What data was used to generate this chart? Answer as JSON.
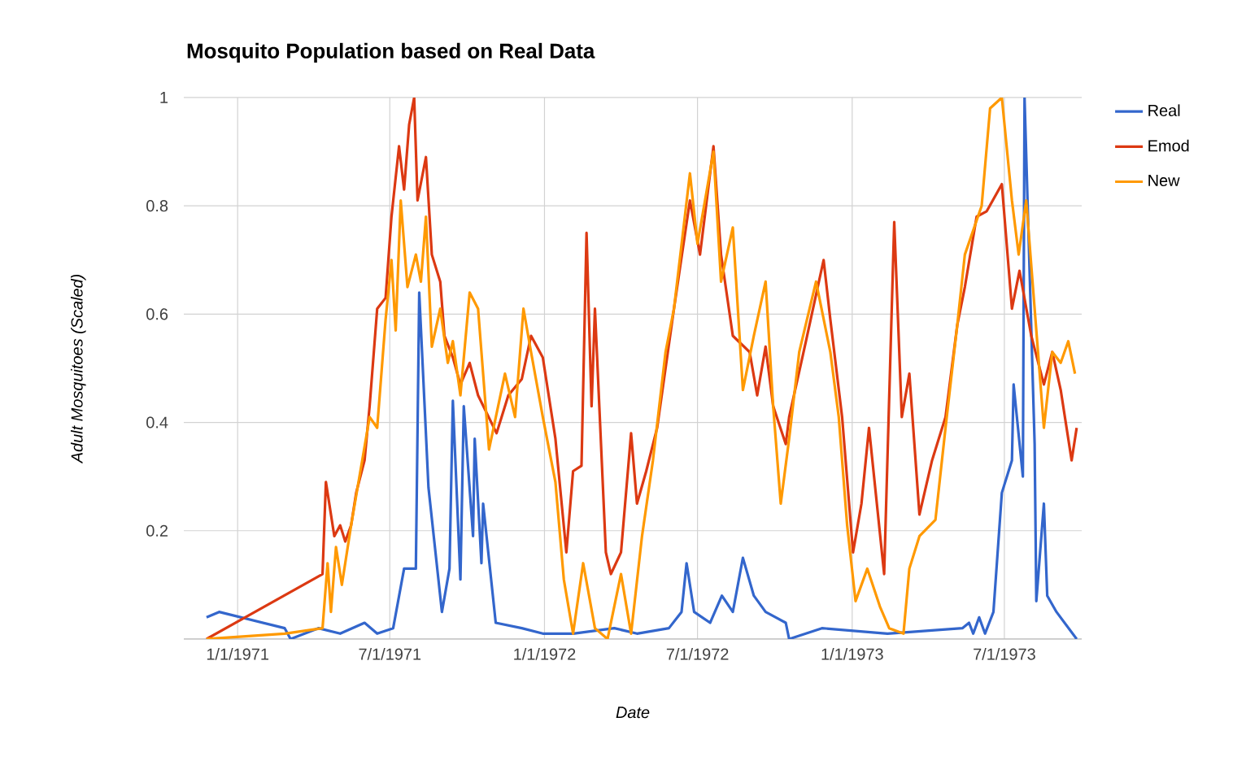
{
  "chart_data": {
    "type": "line",
    "title": "Mosquito Population based on Real Data",
    "xlabel": "Date",
    "ylabel": "Adult Mosquitoes (Scaled)",
    "xlim": [
      "1970-10-29",
      "1973-10-01"
    ],
    "ylim": [
      0,
      1
    ],
    "xticks": [
      {
        "value": "1971-01-01",
        "label": "1/1/1971"
      },
      {
        "value": "1971-07-01",
        "label": "7/1/1971"
      },
      {
        "value": "1972-01-01",
        "label": "1/1/1972"
      },
      {
        "value": "1972-07-01",
        "label": "7/1/1972"
      },
      {
        "value": "1973-01-01",
        "label": "1/1/1973"
      },
      {
        "value": "1973-07-01",
        "label": "7/1/1973"
      }
    ],
    "yticks": [
      {
        "value": 0,
        "label": null
      },
      0.2,
      0.4,
      0.6,
      0.8,
      1
    ],
    "grid": true,
    "legend": "right",
    "series": [
      {
        "name": "Real",
        "color": "#3366cc",
        "x": [
          "1970-11-25",
          "1970-12-10",
          "1971-02-26",
          "1971-03-05",
          "1971-04-07",
          "1971-05-03",
          "1971-06-01",
          "1971-06-16",
          "1971-07-05",
          "1971-07-18",
          "1971-08-01",
          "1971-08-05",
          "1971-08-16",
          "1971-09-01",
          "1971-09-10",
          "1971-09-14",
          "1971-09-23",
          "1971-09-27",
          "1971-10-08",
          "1971-10-10",
          "1971-10-18",
          "1971-10-20",
          "1971-11-04",
          "1971-12-05",
          "1971-12-30",
          "1972-02-04",
          "1972-03-24",
          "1972-04-20",
          "1972-05-28",
          "1972-06-12",
          "1972-06-18",
          "1972-06-27",
          "1972-07-16",
          "1972-07-30",
          "1972-08-12",
          "1972-08-24",
          "1972-09-06",
          "1972-09-20",
          "1972-10-14",
          "1972-10-18",
          "1972-11-26",
          "1973-02-12",
          "1973-05-12",
          "1973-05-20",
          "1973-05-25",
          "1973-06-01",
          "1973-06-08",
          "1973-06-18",
          "1973-06-28",
          "1973-07-10",
          "1973-07-12",
          "1973-07-23",
          "1973-07-25",
          "1973-08-06",
          "1973-08-08",
          "1973-08-17",
          "1973-08-21",
          "1973-09-01",
          "1973-09-25"
        ],
        "values": [
          0.04,
          0.05,
          0.02,
          0.0,
          0.02,
          0.01,
          0.03,
          0.01,
          0.02,
          0.13,
          0.13,
          0.64,
          0.28,
          0.05,
          0.13,
          0.44,
          0.11,
          0.43,
          0.19,
          0.37,
          0.14,
          0.25,
          0.03,
          0.02,
          0.01,
          0.01,
          0.02,
          0.01,
          0.02,
          0.05,
          0.14,
          0.05,
          0.03,
          0.08,
          0.05,
          0.15,
          0.08,
          0.05,
          0.03,
          0.0,
          0.02,
          0.01,
          0.02,
          0.03,
          0.01,
          0.04,
          0.01,
          0.05,
          0.27,
          0.33,
          0.47,
          0.3,
          1.0,
          0.36,
          0.07,
          0.25,
          0.08,
          0.05,
          0.0
        ]
      },
      {
        "name": "Emod",
        "color": "#dc3912",
        "x": [
          "1970-11-25",
          "1971-04-12",
          "1971-04-16",
          "1971-04-26",
          "1971-05-03",
          "1971-05-09",
          "1971-05-16",
          "1971-05-22",
          "1971-06-01",
          "1971-06-07",
          "1971-06-16",
          "1971-06-26",
          "1971-07-03",
          "1971-07-12",
          "1971-07-18",
          "1971-07-24",
          "1971-07-30",
          "1971-08-03",
          "1971-08-13",
          "1971-08-20",
          "1971-08-30",
          "1971-09-04",
          "1971-09-14",
          "1971-09-23",
          "1971-10-04",
          "1971-10-14",
          "1971-11-05",
          "1971-11-19",
          "1971-12-05",
          "1971-12-16",
          "1971-12-30",
          "1972-01-14",
          "1972-01-27",
          "1972-02-04",
          "1972-02-14",
          "1972-02-20",
          "1972-02-26",
          "1972-03-01",
          "1972-03-14",
          "1972-03-20",
          "1972-04-01",
          "1972-04-13",
          "1972-04-20",
          "1972-05-01",
          "1972-05-14",
          "1972-06-03",
          "1972-06-22",
          "1972-07-04",
          "1972-07-20",
          "1972-07-29",
          "1972-08-12",
          "1972-09-01",
          "1972-09-10",
          "1972-09-20",
          "1972-09-29",
          "1972-10-14",
          "1972-10-18",
          "1972-11-07",
          "1972-11-28",
          "1972-12-06",
          "1972-12-20",
          "1973-01-02",
          "1973-01-12",
          "1973-01-21",
          "1973-02-08",
          "1973-02-20",
          "1973-03-01",
          "1973-03-10",
          "1973-03-22",
          "1973-04-06",
          "1973-04-22",
          "1973-05-06",
          "1973-05-15",
          "1973-05-29",
          "1973-06-10",
          "1973-06-28",
          "1973-07-10",
          "1973-07-19",
          "1973-08-02",
          "1973-08-17",
          "1973-08-27",
          "1973-09-06",
          "1973-09-19",
          "1973-09-25"
        ],
        "values": [
          0.0,
          0.12,
          0.29,
          0.19,
          0.21,
          0.18,
          0.21,
          0.27,
          0.33,
          0.43,
          0.61,
          0.63,
          0.78,
          0.91,
          0.83,
          0.95,
          1.0,
          0.81,
          0.89,
          0.71,
          0.66,
          0.56,
          0.52,
          0.47,
          0.51,
          0.45,
          0.38,
          0.45,
          0.48,
          0.56,
          0.52,
          0.37,
          0.16,
          0.31,
          0.32,
          0.75,
          0.43,
          0.61,
          0.16,
          0.12,
          0.16,
          0.38,
          0.25,
          0.31,
          0.39,
          0.61,
          0.81,
          0.71,
          0.91,
          0.71,
          0.56,
          0.53,
          0.45,
          0.54,
          0.43,
          0.36,
          0.41,
          0.55,
          0.7,
          0.59,
          0.41,
          0.16,
          0.25,
          0.39,
          0.12,
          0.77,
          0.41,
          0.49,
          0.23,
          0.33,
          0.41,
          0.58,
          0.65,
          0.78,
          0.79,
          0.84,
          0.61,
          0.68,
          0.56,
          0.47,
          0.53,
          0.46,
          0.33,
          0.39
        ]
      },
      {
        "name": "New",
        "color": "#ff9900",
        "x": [
          "1970-11-25",
          "1971-02-26",
          "1971-04-12",
          "1971-04-18",
          "1971-04-22",
          "1971-04-28",
          "1971-05-05",
          "1971-05-16",
          "1971-05-27",
          "1971-06-07",
          "1971-06-16",
          "1971-06-26",
          "1971-07-03",
          "1971-07-08",
          "1971-07-14",
          "1971-07-22",
          "1971-08-01",
          "1971-08-07",
          "1971-08-13",
          "1971-08-20",
          "1971-08-30",
          "1971-09-08",
          "1971-09-14",
          "1971-09-23",
          "1971-10-04",
          "1971-10-14",
          "1971-10-27",
          "1971-11-15",
          "1971-11-27",
          "1971-12-07",
          "1971-12-16",
          "1971-12-30",
          "1972-01-14",
          "1972-01-24",
          "1972-02-04",
          "1972-02-16",
          "1972-03-01",
          "1972-03-16",
          "1972-04-01",
          "1972-04-13",
          "1972-04-26",
          "1972-05-09",
          "1972-05-24",
          "1972-06-03",
          "1972-06-22",
          "1972-07-01",
          "1972-07-20",
          "1972-07-29",
          "1972-08-12",
          "1972-08-24",
          "1972-09-06",
          "1972-09-20",
          "1972-09-29",
          "1972-10-08",
          "1972-10-18",
          "1972-10-30",
          "1972-11-19",
          "1972-12-06",
          "1972-12-16",
          "1972-12-26",
          "1973-01-05",
          "1973-01-19",
          "1973-02-03",
          "1973-02-14",
          "1973-03-03",
          "1973-03-10",
          "1973-03-22",
          "1973-04-10",
          "1973-04-22",
          "1973-05-06",
          "1973-05-15",
          "1973-06-04",
          "1973-06-14",
          "1973-06-28",
          "1973-07-10",
          "1973-07-18",
          "1973-07-27",
          "1973-08-06",
          "1973-08-17",
          "1973-08-27",
          "1973-09-06",
          "1973-09-15",
          "1973-09-23"
        ],
        "values": [
          0.0,
          0.01,
          0.02,
          0.14,
          0.05,
          0.17,
          0.1,
          0.21,
          0.31,
          0.41,
          0.39,
          0.59,
          0.7,
          0.57,
          0.81,
          0.65,
          0.71,
          0.66,
          0.78,
          0.54,
          0.61,
          0.51,
          0.55,
          0.45,
          0.64,
          0.61,
          0.35,
          0.49,
          0.41,
          0.61,
          0.53,
          0.41,
          0.29,
          0.11,
          0.01,
          0.14,
          0.02,
          0.0,
          0.12,
          0.01,
          0.19,
          0.33,
          0.53,
          0.61,
          0.86,
          0.73,
          0.9,
          0.66,
          0.76,
          0.46,
          0.56,
          0.66,
          0.43,
          0.25,
          0.37,
          0.53,
          0.66,
          0.53,
          0.41,
          0.21,
          0.07,
          0.13,
          0.06,
          0.02,
          0.01,
          0.13,
          0.19,
          0.22,
          0.39,
          0.58,
          0.71,
          0.8,
          0.98,
          1.0,
          0.81,
          0.71,
          0.81,
          0.61,
          0.39,
          0.53,
          0.51,
          0.55,
          0.49
        ]
      }
    ]
  }
}
